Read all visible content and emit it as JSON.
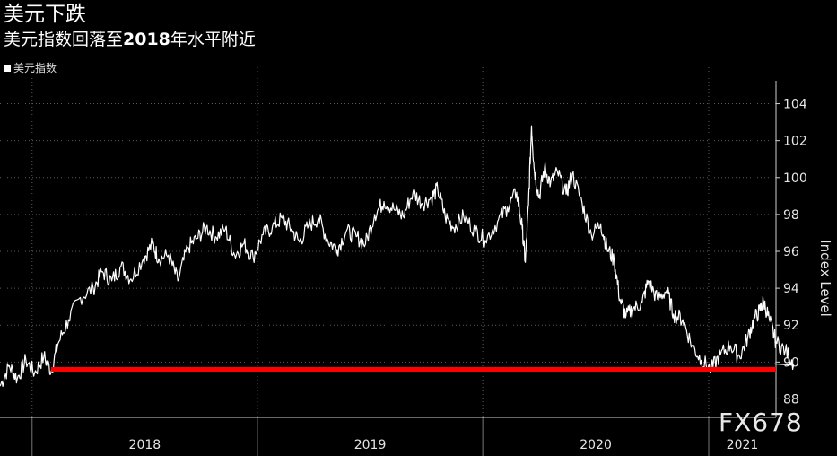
{
  "header": {
    "title": "美元下跌",
    "subtitle_prefix": "美元指数回落至",
    "subtitle_year": "2018",
    "subtitle_suffix": "年水平附近"
  },
  "legend": {
    "label": "美元指数"
  },
  "watermark": "FX678",
  "colors": {
    "background": "#000000",
    "line": "#ffffff",
    "reference": "#ff0000",
    "grid": "#5a5a5a"
  },
  "chart_data": {
    "type": "line",
    "ylabel": "Index Level",
    "ylim": [
      87,
      105
    ],
    "yticks": [
      88,
      90,
      92,
      94,
      96,
      98,
      100,
      102,
      104
    ],
    "x_ticks": [
      "2018",
      "2019",
      "2020",
      "2021"
    ],
    "xlim": [
      "2017-11-10",
      "2021-04-20"
    ],
    "grid": true,
    "legend_position": "top-left",
    "reference_line": {
      "value": 89.6,
      "from": "2018-02-01"
    },
    "series": [
      {
        "name": "美元指数",
        "points": [
          [
            "2017-11-10",
            88.7
          ],
          [
            "2017-11-25",
            89.8
          ],
          [
            "2017-12-08",
            89.1
          ],
          [
            "2017-12-22",
            90.1
          ],
          [
            "2018-01-05",
            89.4
          ],
          [
            "2018-01-20",
            90.3
          ],
          [
            "2018-02-01",
            89.5
          ],
          [
            "2018-02-12",
            91.0
          ],
          [
            "2018-03-01",
            92.3
          ],
          [
            "2018-03-20",
            93.5
          ],
          [
            "2018-04-10",
            94.0
          ],
          [
            "2018-04-25",
            94.9
          ],
          [
            "2018-05-10",
            94.4
          ],
          [
            "2018-05-25",
            95.2
          ],
          [
            "2018-06-10",
            94.5
          ],
          [
            "2018-06-30",
            95.6
          ],
          [
            "2018-07-15",
            96.4
          ],
          [
            "2018-07-25",
            95.6
          ],
          [
            "2018-08-10",
            95.8
          ],
          [
            "2018-08-25",
            94.4
          ],
          [
            "2018-09-10",
            96.2
          ],
          [
            "2018-09-25",
            96.7
          ],
          [
            "2018-10-10",
            97.3
          ],
          [
            "2018-10-25",
            96.8
          ],
          [
            "2018-11-10",
            97.2
          ],
          [
            "2018-11-25",
            95.8
          ],
          [
            "2018-12-10",
            96.4
          ],
          [
            "2018-12-25",
            95.7
          ],
          [
            "2019-01-10",
            96.9
          ],
          [
            "2019-01-25",
            97.3
          ],
          [
            "2019-02-10",
            97.8
          ],
          [
            "2019-02-25",
            97.2
          ],
          [
            "2019-03-10",
            96.5
          ],
          [
            "2019-03-25",
            97.4
          ],
          [
            "2019-04-10",
            97.8
          ],
          [
            "2019-04-25",
            96.6
          ],
          [
            "2019-05-10",
            96.1
          ],
          [
            "2019-05-25",
            97.1
          ],
          [
            "2019-06-10",
            96.8
          ],
          [
            "2019-06-25",
            96.4
          ],
          [
            "2019-07-10",
            98.0
          ],
          [
            "2019-07-25",
            98.7
          ],
          [
            "2019-08-10",
            98.3
          ],
          [
            "2019-08-25",
            97.9
          ],
          [
            "2019-09-10",
            99.2
          ],
          [
            "2019-09-25",
            98.6
          ],
          [
            "2019-10-10",
            98.9
          ],
          [
            "2019-10-20",
            99.4
          ],
          [
            "2019-11-01",
            97.9
          ],
          [
            "2019-11-15",
            97.3
          ],
          [
            "2019-12-01",
            97.9
          ],
          [
            "2019-12-20",
            97.1
          ],
          [
            "2020-01-05",
            96.6
          ],
          [
            "2020-01-25",
            97.6
          ],
          [
            "2020-02-10",
            98.4
          ],
          [
            "2020-02-25",
            99.2
          ],
          [
            "2020-03-05",
            97.2
          ],
          [
            "2020-03-10",
            95.4
          ],
          [
            "2020-03-15",
            98.5
          ],
          [
            "2020-03-20",
            102.8
          ],
          [
            "2020-03-24",
            100.6
          ],
          [
            "2020-04-01",
            98.9
          ],
          [
            "2020-04-10",
            100.5
          ],
          [
            "2020-04-20",
            99.7
          ],
          [
            "2020-05-01",
            100.3
          ],
          [
            "2020-05-15",
            99.1
          ],
          [
            "2020-05-25",
            100.2
          ],
          [
            "2020-06-10",
            98.6
          ],
          [
            "2020-06-25",
            96.9
          ],
          [
            "2020-07-10",
            97.5
          ],
          [
            "2020-07-20",
            96.2
          ],
          [
            "2020-08-01",
            95.5
          ],
          [
            "2020-08-10",
            93.4
          ],
          [
            "2020-08-20",
            92.5
          ],
          [
            "2020-09-01",
            92.9
          ],
          [
            "2020-09-15",
            93.2
          ],
          [
            "2020-09-25",
            94.4
          ],
          [
            "2020-10-10",
            93.4
          ],
          [
            "2020-10-25",
            93.9
          ],
          [
            "2020-11-05",
            92.6
          ],
          [
            "2020-11-20",
            92.3
          ],
          [
            "2020-12-05",
            90.9
          ],
          [
            "2020-12-20",
            90.1
          ],
          [
            "2021-01-05",
            89.6
          ],
          [
            "2021-01-20",
            90.4
          ],
          [
            "2021-02-05",
            90.9
          ],
          [
            "2021-02-20",
            90.3
          ],
          [
            "2021-03-05",
            91.3
          ],
          [
            "2021-03-15",
            92.3
          ],
          [
            "2021-03-25",
            92.8
          ],
          [
            "2021-03-31",
            93.3
          ],
          [
            "2021-04-10",
            92.2
          ],
          [
            "2021-04-20",
            91.1
          ],
          [
            "2021-05-05",
            90.6
          ],
          [
            "2021-05-20",
            89.9
          ]
        ]
      }
    ]
  }
}
